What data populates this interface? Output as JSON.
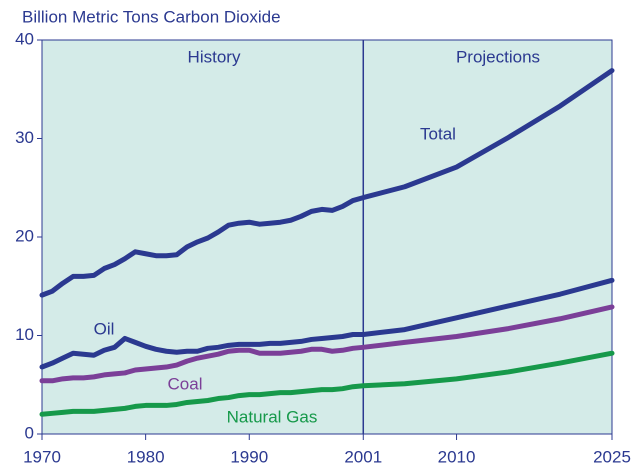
{
  "chart_data": {
    "type": "line",
    "title": "Billion Metric Tons Carbon Dioxide",
    "annotations": [
      "History",
      "Projections",
      "Total",
      "Oil",
      "Coal",
      "Natural Gas"
    ],
    "divider_x": 2001,
    "x": [
      1970,
      1971,
      1972,
      1973,
      1974,
      1975,
      1976,
      1977,
      1978,
      1979,
      1980,
      1981,
      1982,
      1983,
      1984,
      1985,
      1986,
      1987,
      1988,
      1989,
      1990,
      1991,
      1992,
      1993,
      1994,
      1995,
      1996,
      1997,
      1998,
      1999,
      2000,
      2001,
      2005,
      2010,
      2015,
      2020,
      2025
    ],
    "series": [
      {
        "name": "Total",
        "color": "#2b3990",
        "values": [
          14.1,
          14.5,
          15.3,
          16.0,
          16.0,
          16.1,
          16.8,
          17.2,
          17.8,
          18.5,
          18.3,
          18.1,
          18.1,
          18.2,
          19.0,
          19.5,
          19.9,
          20.5,
          21.2,
          21.4,
          21.5,
          21.3,
          21.4,
          21.5,
          21.7,
          22.1,
          22.6,
          22.8,
          22.7,
          23.1,
          23.7,
          24.0,
          25.1,
          27.1,
          30.1,
          33.3,
          36.9
        ]
      },
      {
        "name": "Oil",
        "color": "#2b3990",
        "values": [
          6.8,
          7.2,
          7.7,
          8.2,
          8.1,
          8.0,
          8.5,
          8.8,
          9.7,
          9.3,
          8.9,
          8.6,
          8.4,
          8.3,
          8.4,
          8.4,
          8.7,
          8.8,
          9.0,
          9.1,
          9.1,
          9.1,
          9.2,
          9.2,
          9.3,
          9.4,
          9.6,
          9.7,
          9.8,
          9.9,
          10.1,
          10.1,
          10.6,
          11.8,
          13.0,
          14.2,
          15.6
        ]
      },
      {
        "name": "Coal",
        "color": "#7b3f98",
        "values": [
          5.4,
          5.4,
          5.6,
          5.7,
          5.7,
          5.8,
          6.0,
          6.1,
          6.2,
          6.5,
          6.6,
          6.7,
          6.8,
          7.0,
          7.4,
          7.7,
          7.9,
          8.1,
          8.4,
          8.5,
          8.5,
          8.2,
          8.2,
          8.2,
          8.3,
          8.4,
          8.6,
          8.6,
          8.4,
          8.5,
          8.7,
          8.8,
          9.3,
          9.9,
          10.7,
          11.7,
          12.9
        ]
      },
      {
        "name": "Natural Gas",
        "color": "#16994a",
        "values": [
          2.0,
          2.1,
          2.2,
          2.3,
          2.3,
          2.3,
          2.4,
          2.5,
          2.6,
          2.8,
          2.9,
          2.9,
          2.9,
          3.0,
          3.2,
          3.3,
          3.4,
          3.6,
          3.7,
          3.9,
          4.0,
          4.0,
          4.1,
          4.2,
          4.2,
          4.3,
          4.4,
          4.5,
          4.5,
          4.6,
          4.8,
          4.9,
          5.1,
          5.6,
          6.3,
          7.2,
          8.2
        ]
      }
    ],
    "xlim": [
      1970,
      2025
    ],
    "xticks": [
      1970,
      1980,
      1990,
      2001,
      2010,
      2025
    ],
    "ylim": [
      0,
      40
    ],
    "yticks": [
      0,
      10,
      20,
      30,
      40
    ]
  }
}
